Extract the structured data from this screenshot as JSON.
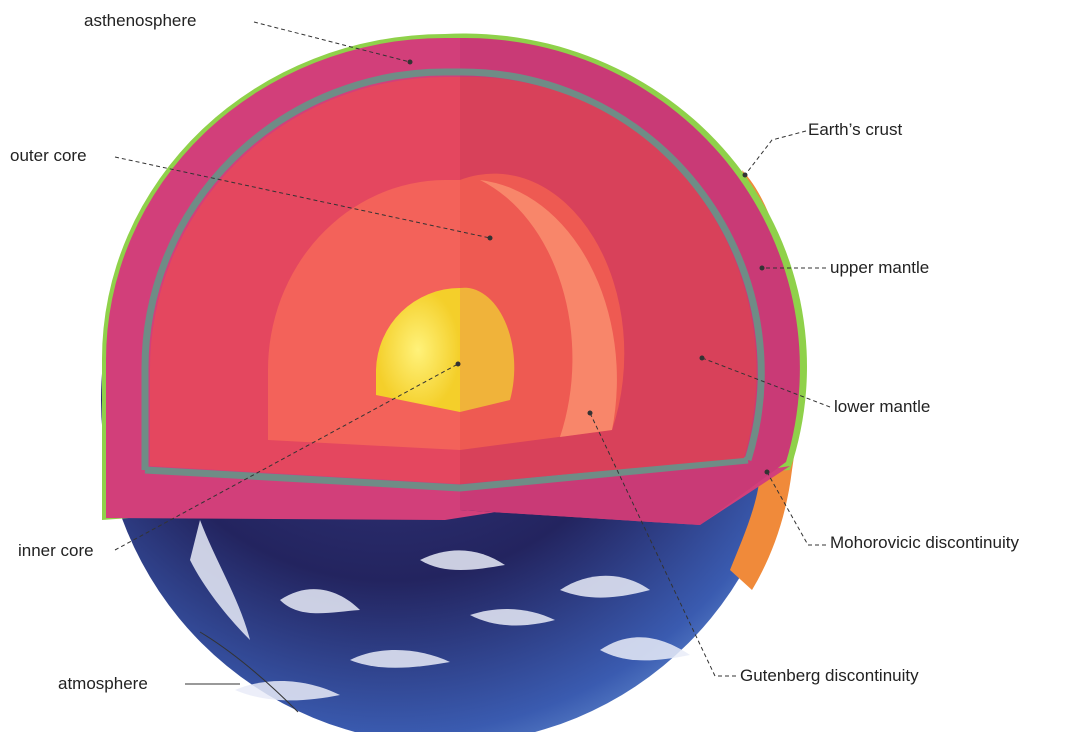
{
  "labels": {
    "asthenosphere": "asthenosphere",
    "outer_core": "outer core",
    "earths_crust": "Earth’s crust",
    "upper_mantle": "upper mantle",
    "lower_mantle": "lower mantle",
    "inner_core": "inner core",
    "mohorovicic": "Mohorovicic discontinuity",
    "atmosphere": "atmosphere",
    "gutenberg": "Gutenberg discontinuity"
  },
  "colors": {
    "crust_rim": "#8fd14a",
    "mantle": "#d23f7a",
    "asthenosphere_band": "#6f8c86",
    "lower_mantle": "#ea4e60",
    "outer_core": "#f66a5a",
    "inner_core": "#f8e04a",
    "ocean": "#272867",
    "land": "#f08a3a"
  }
}
